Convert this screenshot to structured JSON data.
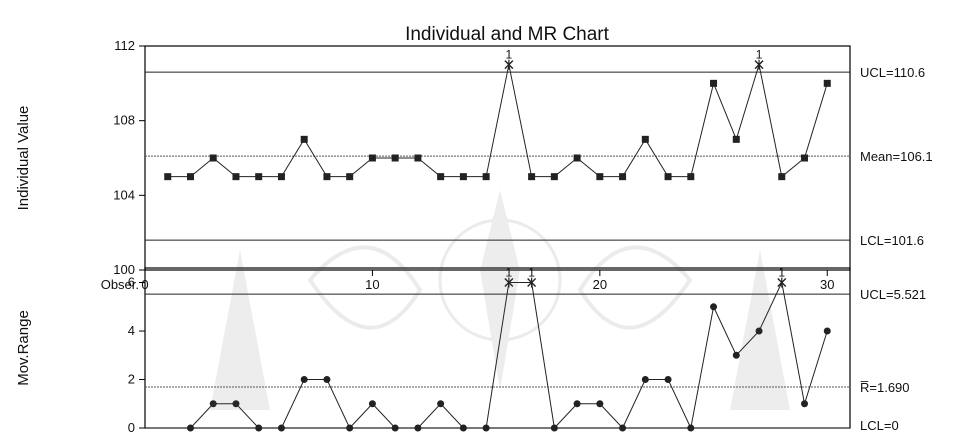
{
  "chart_data": [
    {
      "type": "line",
      "title": "Individual and MR Chart",
      "ylabel": "Individual Value",
      "xlabel": "Obser.",
      "x": [
        1,
        2,
        3,
        4,
        5,
        6,
        7,
        8,
        9,
        10,
        11,
        12,
        13,
        14,
        15,
        16,
        17,
        18,
        19,
        20,
        21,
        22,
        23,
        24,
        25,
        26,
        27,
        28,
        29,
        30
      ],
      "values": [
        105,
        105,
        106,
        105,
        105,
        105,
        107,
        105,
        105,
        106,
        106,
        106,
        105,
        105,
        105,
        111,
        105,
        105,
        106,
        105,
        105,
        107,
        105,
        105,
        110,
        107,
        111,
        105,
        106,
        110
      ],
      "out_of_control": [
        16,
        27
      ],
      "out_label": "1",
      "xlim": [
        0,
        31
      ],
      "ylim": [
        100,
        112
      ],
      "xticks": [
        0,
        10,
        20,
        30
      ],
      "xtick_labels": [
        "0",
        "10",
        "20",
        "30"
      ],
      "yticks": [
        100,
        104,
        108,
        112
      ],
      "ytick_labels": [
        "100",
        "104",
        "108",
        "112"
      ],
      "ucl": 110.6,
      "mean": 106.1,
      "lcl": 101.6,
      "ucl_label": "UCL=110.6",
      "center_label": "Mean=106.1",
      "lcl_label": "LCL=101.6",
      "grid": false
    },
    {
      "type": "line",
      "ylabel": "Mov.Range",
      "x": [
        2,
        3,
        4,
        5,
        6,
        7,
        8,
        9,
        10,
        11,
        12,
        13,
        14,
        15,
        16,
        17,
        18,
        19,
        20,
        21,
        22,
        23,
        24,
        25,
        26,
        27,
        28,
        29,
        30
      ],
      "values": [
        0,
        1,
        1,
        0,
        0,
        2,
        2,
        0,
        1,
        0,
        0,
        1,
        0,
        0,
        6,
        6,
        0,
        1,
        1,
        0,
        2,
        2,
        0,
        5,
        3,
        4,
        6,
        1,
        4
      ],
      "out_of_control": [
        16,
        17,
        28
      ],
      "out_label": "1",
      "xlim": [
        0,
        31
      ],
      "ylim": [
        0,
        6.6
      ],
      "yticks": [
        0,
        2,
        4,
        6
      ],
      "ytick_labels": [
        "0",
        "2",
        "4",
        "6"
      ],
      "ucl": 5.521,
      "mean": 1.69,
      "lcl": 0,
      "ucl_label": "UCL=5.521",
      "center_label": "R̅=1.690",
      "lcl_label": "LCL=0",
      "grid": false
    }
  ]
}
